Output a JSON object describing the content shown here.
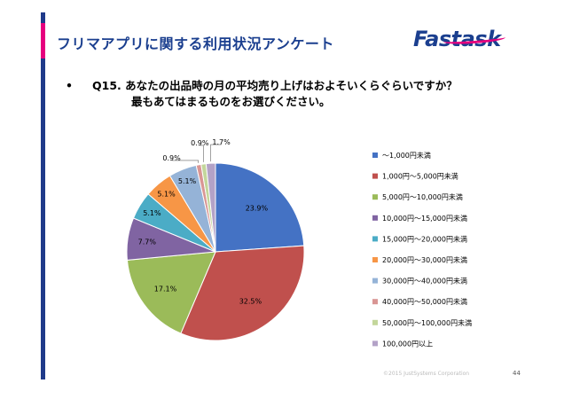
{
  "header": {
    "title": "フリマアプリに関する利用状況アンケート",
    "logo": "Fastask"
  },
  "question": {
    "bullet": "•",
    "line1": "Q15.  あなたの出品時の月の平均売り上げはおよそいくらぐらいですか？",
    "line2": "最もあてはまるものをお選びください。"
  },
  "chart_data": {
    "type": "pie",
    "title": "",
    "categories": [
      "～1,000円未満",
      "1,000円～5,000円未満",
      "5,000円～10,000円未満",
      "10,000円～15,000円未満",
      "15,000円～20,000円未満",
      "20,000円～30,000円未満",
      "30,000円～40,000円未満",
      "40,000円～50,000円未満",
      "50,000円～100,000円未満",
      "100,000円以上"
    ],
    "values": [
      23.9,
      32.5,
      17.1,
      7.7,
      5.1,
      5.1,
      5.1,
      0.9,
      0.9,
      1.7
    ],
    "labels": [
      "23.9%",
      "32.5%",
      "17.1%",
      "7.7%",
      "5.1%",
      "5.1%",
      "5.1%",
      "0.9%",
      "0.9%",
      "1.7%"
    ],
    "colors": [
      "#4472c4",
      "#c0504d",
      "#9bbb59",
      "#8064a2",
      "#4bacc6",
      "#f79646",
      "#95b3d7",
      "#d99694",
      "#c3d69b",
      "#b3a2c7"
    ],
    "legend_position": "right"
  },
  "footer": {
    "copyright": "©2015 JustSystems Corporation",
    "page": "44"
  }
}
